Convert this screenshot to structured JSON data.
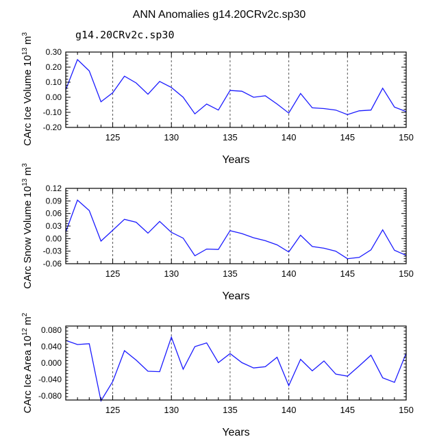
{
  "title": "ANN Anomalies g14.20CRv2c.sp30",
  "subtitle": "g14.20CRv2c.sp30",
  "line_color": "#1a1aff",
  "chart_data": [
    {
      "type": "line",
      "name": "ice-volume",
      "ylabel_main": "CArc Ice Volume 10",
      "ylabel_exp": "13",
      "ylabel_unit": " m",
      "ylabel_unit_exp": "3",
      "xlabel": "Years",
      "xlim": [
        121,
        150
      ],
      "ylim": [
        -0.2,
        0.3
      ],
      "yticks": [
        -0.2,
        -0.1,
        0.0,
        0.1,
        0.2,
        0.3
      ],
      "ytick_labels": [
        "-0.20",
        "-0.10",
        "0.00",
        "0.10",
        "0.20",
        "0.30"
      ],
      "xticks": [
        125,
        130,
        135,
        140,
        145,
        150
      ],
      "xtick_labels": [
        "125",
        "130",
        "135",
        "140",
        "145",
        "150"
      ],
      "x": [
        121,
        122,
        123,
        124,
        125,
        126,
        127,
        128,
        129,
        130,
        131,
        132,
        133,
        134,
        135,
        136,
        137,
        138,
        139,
        140,
        141,
        142,
        143,
        144,
        145,
        146,
        147,
        148,
        149,
        150
      ],
      "values": [
        0.05,
        0.25,
        0.175,
        -0.03,
        0.03,
        0.14,
        0.095,
        0.02,
        0.105,
        0.065,
        0.0,
        -0.11,
        -0.045,
        -0.085,
        0.045,
        0.04,
        0.0,
        0.01,
        -0.045,
        -0.105,
        0.025,
        -0.07,
        -0.075,
        -0.085,
        -0.115,
        -0.09,
        -0.085,
        0.06,
        -0.065,
        -0.095
      ]
    },
    {
      "type": "line",
      "name": "snow-volume",
      "ylabel_main": "CArc Snow Volume 10",
      "ylabel_exp": "13",
      "ylabel_unit": " m",
      "ylabel_unit_exp": "3",
      "xlabel": "Years",
      "xlim": [
        121,
        150
      ],
      "ylim": [
        -0.06,
        0.12
      ],
      "yticks": [
        -0.06,
        -0.03,
        0.0,
        0.03,
        0.06,
        0.09,
        0.12
      ],
      "ytick_labels": [
        "-0.06",
        "-0.03",
        "0.00",
        "0.03",
        "0.06",
        "0.09",
        "0.12"
      ],
      "xticks": [
        125,
        130,
        135,
        140,
        145,
        150
      ],
      "xtick_labels": [
        "125",
        "130",
        "135",
        "140",
        "145",
        "150"
      ],
      "x": [
        121,
        122,
        123,
        124,
        125,
        126,
        127,
        128,
        129,
        130,
        131,
        132,
        133,
        134,
        135,
        136,
        137,
        138,
        139,
        140,
        141,
        142,
        143,
        144,
        145,
        146,
        147,
        148,
        149,
        150
      ],
      "values": [
        0.016,
        0.092,
        0.067,
        -0.006,
        0.02,
        0.046,
        0.039,
        0.013,
        0.041,
        0.015,
        0.001,
        -0.041,
        -0.025,
        -0.026,
        0.019,
        0.012,
        0.002,
        -0.005,
        -0.015,
        -0.032,
        0.008,
        -0.019,
        -0.023,
        -0.03,
        -0.048,
        -0.045,
        -0.027,
        0.021,
        -0.028,
        -0.04
      ]
    },
    {
      "type": "line",
      "name": "ice-area",
      "ylabel_main": "CArc Ice Area 10",
      "ylabel_exp": "12",
      "ylabel_unit": " m",
      "ylabel_unit_exp": "2",
      "xlabel": "Years",
      "xlim": [
        121,
        150
      ],
      "ylim": [
        -0.09,
        0.09
      ],
      "yticks": [
        -0.08,
        -0.04,
        0.0,
        0.04,
        0.08
      ],
      "ytick_labels": [
        "-0.080",
        "-0.040",
        "0.000",
        "0.040",
        "0.080"
      ],
      "xticks": [
        125,
        130,
        135,
        140,
        145,
        150
      ],
      "xtick_labels": [
        "125",
        "130",
        "135",
        "140",
        "145",
        "150"
      ],
      "x": [
        121,
        122,
        123,
        124,
        125,
        126,
        127,
        128,
        129,
        130,
        131,
        132,
        133,
        134,
        135,
        136,
        137,
        138,
        139,
        140,
        141,
        142,
        143,
        144,
        145,
        146,
        147,
        148,
        149,
        150
      ],
      "values": [
        0.055,
        0.045,
        0.047,
        -0.092,
        -0.045,
        0.03,
        0.007,
        -0.02,
        -0.021,
        0.063,
        -0.015,
        0.04,
        0.049,
        0.001,
        0.023,
        0.001,
        -0.012,
        -0.009,
        0.014,
        -0.055,
        0.009,
        -0.019,
        0.005,
        -0.027,
        -0.032,
        -0.007,
        0.019,
        -0.036,
        -0.047,
        0.024
      ]
    }
  ]
}
